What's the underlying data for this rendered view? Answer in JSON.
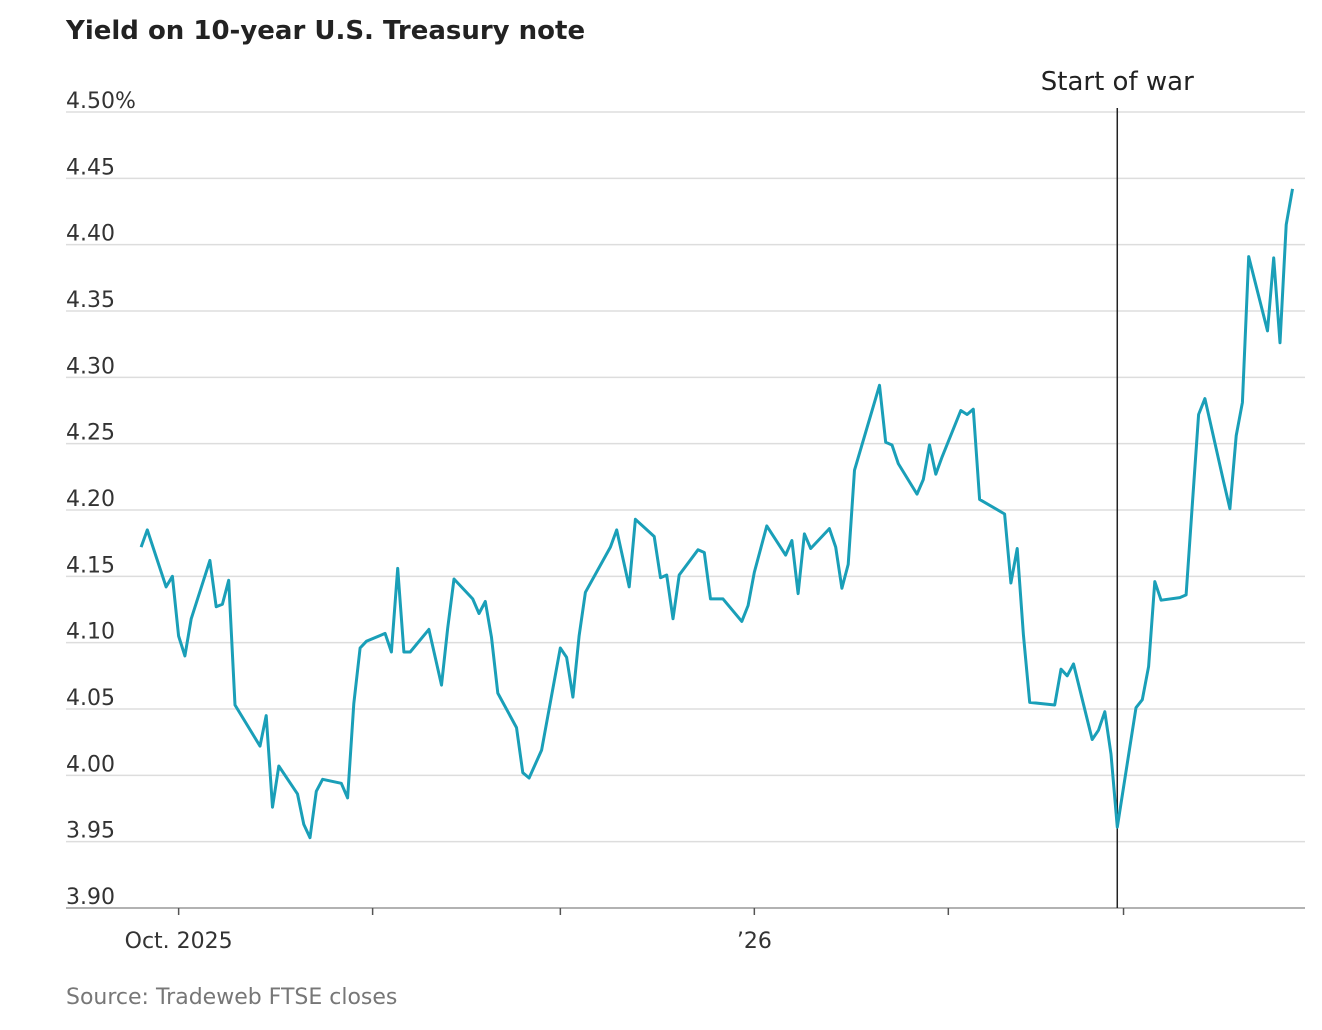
{
  "chart_data": {
    "type": "line",
    "title": "Yield on 10-year U.S. Treasury note",
    "source": "Source: Tradeweb FTSE closes",
    "x": [
      -6,
      -5,
      -2,
      -1,
      0,
      1,
      2,
      5,
      6,
      7,
      8,
      9,
      13,
      14,
      15,
      16,
      19,
      20,
      21,
      22,
      23,
      26,
      27,
      28,
      29,
      30,
      33,
      34,
      35,
      36,
      37,
      40,
      42,
      43,
      44,
      47,
      48,
      49,
      50,
      51,
      54,
      55,
      56,
      58,
      61,
      62,
      63,
      64,
      65,
      69,
      70,
      72,
      73,
      76,
      77,
      78,
      79,
      80,
      83,
      84,
      85,
      87,
      90,
      91,
      92,
      94,
      97,
      98,
      99,
      100,
      101,
      104,
      105,
      106,
      107,
      108,
      112,
      113,
      114,
      115,
      118,
      119,
      120,
      121,
      122,
      125,
      126,
      127,
      128,
      132,
      133,
      134,
      135,
      136,
      140,
      141,
      142,
      143,
      146,
      147,
      148,
      149,
      150,
      153,
      154,
      155,
      156,
      157,
      160,
      161,
      162,
      163,
      164,
      167,
      168,
      169,
      170,
      171,
      174,
      175,
      176,
      177,
      178
    ],
    "series": [
      {
        "name": "Yield",
        "color": "#1a9fb8",
        "values": [
          4.172,
          4.185,
          4.142,
          4.15,
          4.105,
          4.09,
          4.118,
          4.162,
          4.127,
          4.129,
          4.147,
          4.053,
          4.022,
          4.045,
          3.976,
          4.007,
          3.986,
          3.963,
          3.953,
          3.988,
          3.997,
          3.994,
          3.983,
          4.054,
          4.096,
          4.101,
          4.107,
          4.093,
          4.156,
          4.093,
          4.093,
          4.11,
          4.068,
          4.111,
          4.148,
          4.133,
          4.122,
          4.131,
          4.104,
          4.062,
          4.036,
          4.002,
          3.998,
          4.019,
          4.096,
          4.089,
          4.059,
          4.105,
          4.138,
          4.172,
          4.185,
          4.142,
          4.193,
          4.18,
          4.149,
          4.151,
          4.118,
          4.151,
          4.17,
          4.168,
          4.133,
          4.133,
          4.116,
          4.128,
          4.153,
          4.188,
          4.166,
          4.177,
          4.137,
          4.182,
          4.171,
          4.186,
          4.172,
          4.141,
          4.159,
          4.23,
          4.294,
          4.251,
          4.249,
          4.235,
          4.212,
          4.223,
          4.249,
          4.227,
          4.24,
          4.275,
          4.272,
          4.276,
          4.208,
          4.197,
          4.145,
          4.171,
          4.106,
          4.055,
          4.053,
          4.08,
          4.075,
          4.084,
          4.027,
          4.034,
          4.048,
          4.016,
          3.961,
          4.051,
          4.057,
          4.082,
          4.146,
          4.132,
          4.134,
          4.136,
          4.205,
          4.272,
          4.284,
          4.221,
          4.201,
          4.256,
          4.281,
          4.391,
          4.335,
          4.39,
          4.326,
          4.415,
          4.442
        ]
      }
    ],
    "xlim": [
      -18,
      180
    ],
    "xticks": [
      {
        "value": 0,
        "label": "Oct. 2025"
      },
      {
        "value": 31,
        "label": null
      },
      {
        "value": 61,
        "label": null
      },
      {
        "value": 92,
        "label": "’26"
      },
      {
        "value": 123,
        "label": null
      },
      {
        "value": 151,
        "label": null
      }
    ],
    "ylim": [
      3.9,
      4.5
    ],
    "yticks": [
      {
        "value": 3.9,
        "label": "3.90"
      },
      3.95,
      {
        "value": 4.0,
        "label": "4.00"
      },
      4.05,
      {
        "value": 4.1,
        "label": "4.10"
      },
      4.15,
      {
        "value": 4.2,
        "label": "4.20"
      },
      4.25,
      {
        "value": 4.3,
        "label": "4.30"
      },
      4.35,
      {
        "value": 4.4,
        "label": "4.40"
      },
      4.45,
      {
        "value": 4.5,
        "label": "4.50%"
      }
    ],
    "grid": true,
    "annotations": [
      {
        "text": "Start of war",
        "x": 150
      }
    ]
  }
}
